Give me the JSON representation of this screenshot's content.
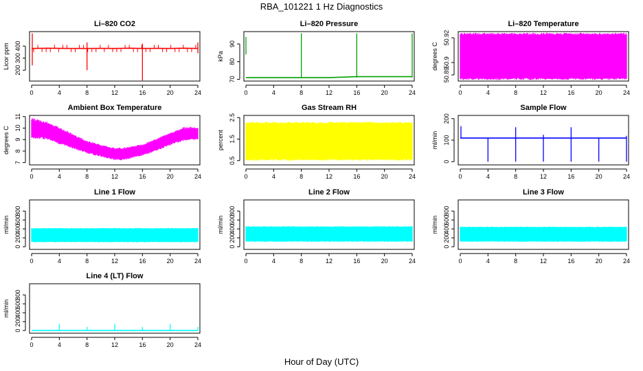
{
  "figure": {
    "title": "RBA_101221  1 Hz Diagnostics",
    "xlabel": "Hour of Day (UTC)"
  },
  "chart_data": [
    {
      "type": "line",
      "title": "Li–820 CO2",
      "ylabel": "Licor ppm",
      "color": "#ff0000",
      "x_ticks": [
        0,
        4,
        8,
        12,
        16,
        20,
        24
      ],
      "y_ticks": [
        200,
        300,
        400
      ],
      "xlim": [
        0,
        24
      ],
      "ylim": [
        110,
        520
      ],
      "series": [
        {
          "x": [
            0,
            0.3,
            2.2,
            4,
            5.6,
            8,
            9.8,
            12,
            14.2,
            16,
            18.3,
            20,
            22,
            24
          ],
          "values": [
            380,
            380,
            382,
            381,
            380,
            380,
            381,
            380,
            382,
            380,
            381,
            380,
            382,
            380
          ]
        }
      ],
      "spikes": [
        {
          "x": 0.1,
          "values": [
            240,
            505
          ]
        },
        {
          "x": 8,
          "values": [
            200,
            430
          ]
        },
        {
          "x": 16,
          "values": [
            115,
            420
          ]
        },
        {
          "x": 24,
          "values": [
            340,
            430
          ]
        }
      ]
    },
    {
      "type": "line",
      "title": "Li–820 Pressure",
      "ylabel": "kPa",
      "color": "#00a000",
      "x_ticks": [
        0,
        4,
        8,
        12,
        16,
        20,
        24
      ],
      "y_ticks": [
        70,
        80,
        90
      ],
      "xlim": [
        0,
        24
      ],
      "ylim": [
        69,
        97
      ],
      "series": [
        {
          "x": [
            0,
            4,
            8,
            12,
            16,
            20,
            24
          ],
          "values": [
            71,
            71,
            71,
            71,
            71.5,
            71.5,
            71.5
          ]
        }
      ],
      "spikes": [
        {
          "x": 0,
          "values": [
            84,
            94
          ]
        },
        {
          "x": 8,
          "values": [
            71,
            96
          ]
        },
        {
          "x": 16,
          "values": [
            71,
            96
          ]
        },
        {
          "x": 24,
          "values": [
            71,
            96
          ]
        }
      ]
    },
    {
      "type": "area",
      "title": "Li–820 Temperature",
      "ylabel": "degrees C",
      "color": "#ff00ff",
      "x_ticks": [
        0,
        4,
        8,
        12,
        16,
        20,
        24
      ],
      "y_ticks": [
        50.89,
        50.9,
        50.92
      ],
      "xlim": [
        0,
        24
      ],
      "ylim": [
        50.885,
        50.925
      ],
      "band": {
        "x": [
          0,
          24
        ],
        "low": [
          50.886,
          50.886
        ],
        "high": [
          50.924,
          50.924
        ]
      }
    },
    {
      "type": "area",
      "title": "Ambient Box Temperature",
      "ylabel": "degrees C",
      "color": "#ff00ff",
      "x_ticks": [
        0,
        4,
        8,
        12,
        16,
        20,
        24
      ],
      "y_ticks": [
        7,
        8,
        9,
        10,
        11
      ],
      "xlim": [
        0,
        24
      ],
      "ylim": [
        6.8,
        11.1
      ],
      "band": {
        "x": [
          0,
          2,
          4,
          6,
          8,
          10,
          12,
          13,
          14,
          16,
          18,
          20,
          22,
          24
        ],
        "low": [
          9.1,
          9.0,
          8.6,
          8.2,
          7.8,
          7.5,
          7.2,
          7.2,
          7.3,
          7.6,
          8.0,
          8.5,
          8.9,
          9.0
        ],
        "high": [
          10.9,
          10.6,
          10.1,
          9.5,
          8.9,
          8.6,
          8.3,
          8.3,
          8.4,
          8.6,
          9.1,
          9.6,
          10.1,
          10.1
        ]
      }
    },
    {
      "type": "area",
      "title": "Gas Stream RH",
      "ylabel": "percent",
      "color": "#ffff00",
      "x_ticks": [
        0,
        4,
        8,
        12,
        16,
        20,
        24
      ],
      "y_ticks": [
        0.5,
        1.5,
        2.5
      ],
      "xlim": [
        0,
        24
      ],
      "ylim": [
        0.3,
        2.6
      ],
      "band": {
        "x": [
          0,
          24
        ],
        "low": [
          0.5,
          0.5
        ],
        "high": [
          2.3,
          2.3
        ]
      }
    },
    {
      "type": "line",
      "title": "Sample Flow",
      "ylabel": "ml/min",
      "color": "#0000ff",
      "x_ticks": [
        0,
        4,
        8,
        12,
        16,
        20,
        24
      ],
      "y_ticks": [
        0,
        100,
        200
      ],
      "xlim": [
        0,
        24
      ],
      "ylim": [
        -15,
        215
      ],
      "series": [
        {
          "x": [
            0,
            4,
            8,
            12,
            16,
            20,
            24
          ],
          "values": [
            110,
            110,
            110,
            110,
            110,
            110,
            110
          ]
        }
      ],
      "spikes": [
        {
          "x": 0.1,
          "values": [
            110,
            165
          ]
        },
        {
          "x": 4,
          "values": [
            0,
            110
          ]
        },
        {
          "x": 8,
          "values": [
            0,
            160
          ]
        },
        {
          "x": 12,
          "values": [
            0,
            125
          ]
        },
        {
          "x": 16,
          "values": [
            0,
            160
          ]
        },
        {
          "x": 20,
          "values": [
            0,
            110
          ]
        },
        {
          "x": 24,
          "values": [
            0,
            120
          ]
        }
      ]
    },
    {
      "type": "area",
      "title": "Line 1 Flow",
      "ylabel": "ml/min",
      "color": "#00ffff",
      "x_ticks": [
        0,
        4,
        8,
        12,
        16,
        20,
        24
      ],
      "y_ticks": [
        0,
        200,
        400,
        600,
        800
      ],
      "xlim": [
        0,
        24
      ],
      "ylim": [
        -60,
        1050
      ],
      "band": {
        "x": [
          0,
          24
        ],
        "low": [
          100,
          100
        ],
        "high": [
          420,
          420
        ]
      }
    },
    {
      "type": "area",
      "title": "Line 2 Flow",
      "ylabel": "ml/min",
      "color": "#00ffff",
      "x_ticks": [
        0,
        4,
        8,
        12,
        16,
        20,
        24
      ],
      "y_ticks": [
        0,
        200,
        400,
        600,
        800
      ],
      "xlim": [
        0,
        24
      ],
      "ylim": [
        -60,
        1050
      ],
      "band": {
        "x": [
          0,
          24
        ],
        "low": [
          110,
          110
        ],
        "high": [
          460,
          460
        ]
      }
    },
    {
      "type": "area",
      "title": "Line 3 Flow",
      "ylabel": "ml/min",
      "color": "#00ffff",
      "x_ticks": [
        0,
        4,
        8,
        12,
        16,
        20,
        24
      ],
      "y_ticks": [
        0,
        200,
        400,
        600,
        800
      ],
      "xlim": [
        0,
        24
      ],
      "ylim": [
        -60,
        1050
      ],
      "band": {
        "x": [
          0,
          24
        ],
        "low": [
          110,
          110
        ],
        "high": [
          450,
          450
        ]
      }
    },
    {
      "type": "line",
      "title": "Line 4 (LT) Flow",
      "ylabel": "ml/min",
      "color": "#00ffff",
      "x_ticks": [
        0,
        4,
        8,
        12,
        16,
        20,
        24
      ],
      "y_ticks": [
        0,
        200,
        400,
        600,
        800
      ],
      "xlim": [
        0,
        24
      ],
      "ylim": [
        -60,
        1050
      ],
      "series": [
        {
          "x": [
            0,
            24
          ],
          "values": [
            0,
            0
          ]
        }
      ],
      "spikes": [
        {
          "x": 4,
          "values": [
            0,
            150
          ]
        },
        {
          "x": 8,
          "values": [
            0,
            80
          ]
        },
        {
          "x": 12,
          "values": [
            0,
            150
          ]
        },
        {
          "x": 16,
          "values": [
            0,
            80
          ]
        },
        {
          "x": 20,
          "values": [
            0,
            150
          ]
        },
        {
          "x": 24,
          "values": [
            0,
            80
          ]
        }
      ]
    }
  ]
}
